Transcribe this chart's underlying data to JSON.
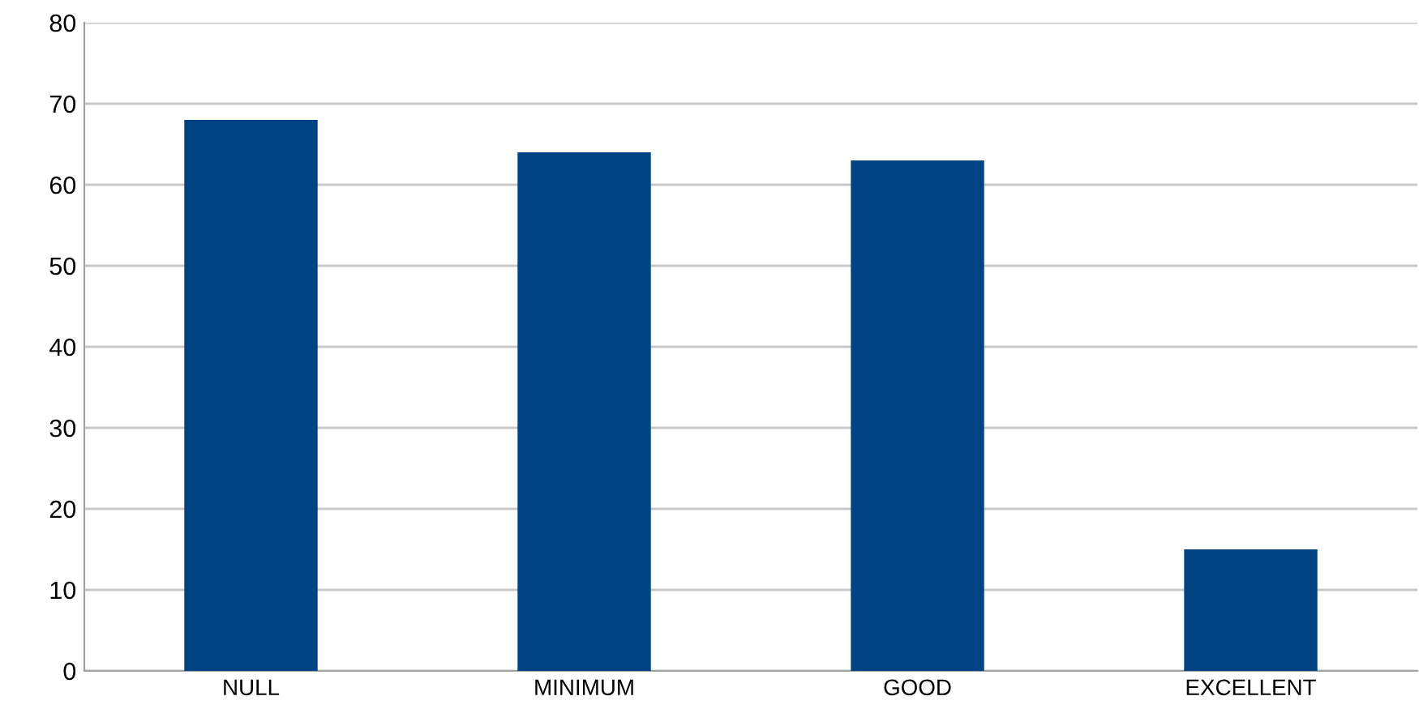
{
  "chart_data": {
    "type": "bar",
    "categories": [
      "NULL",
      "MINIMUM",
      "GOOD",
      "EXCELLENT"
    ],
    "values": [
      68,
      64,
      63,
      15
    ],
    "color": "#004383",
    "ylim": [
      0,
      80
    ],
    "yticks": [
      0,
      10,
      20,
      30,
      40,
      50,
      60,
      70,
      80
    ],
    "grid": "y",
    "legend": false
  }
}
